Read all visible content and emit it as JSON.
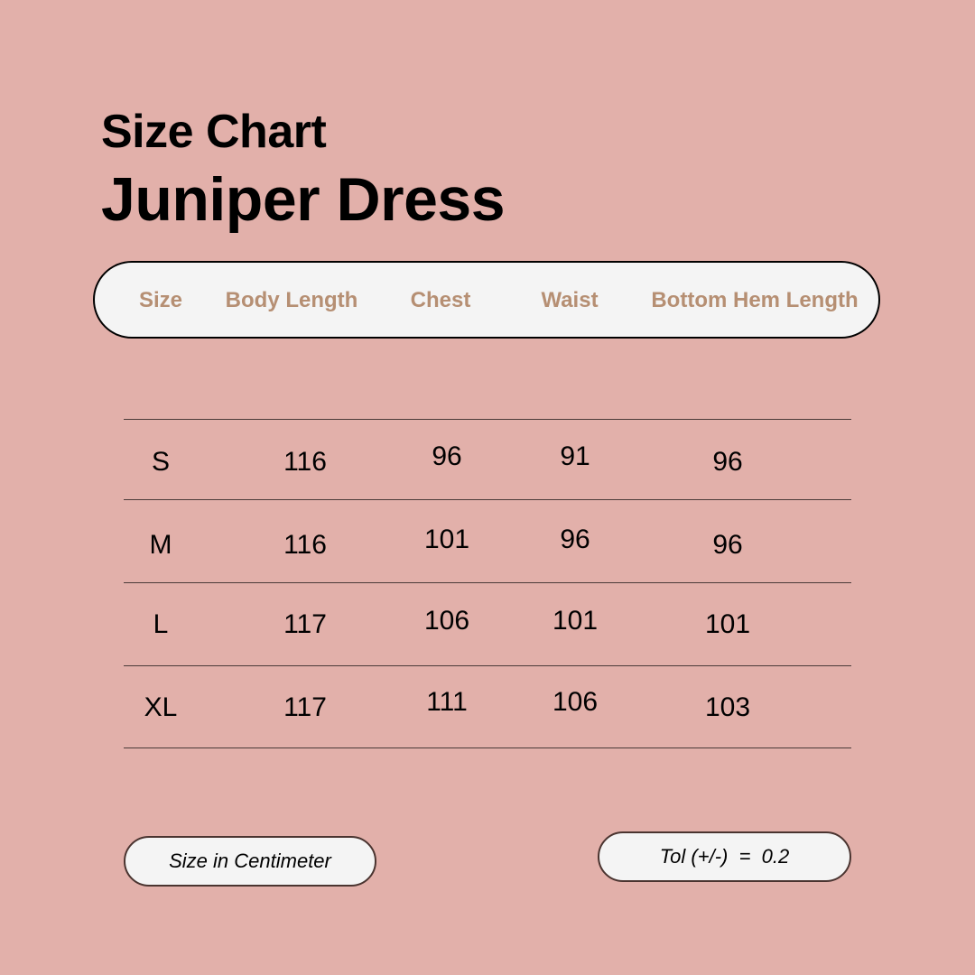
{
  "title": "Size Chart",
  "product": "Juniper Dress",
  "table": {
    "headers": [
      "Size",
      "Body Length",
      "Chest",
      "Waist",
      "Bottom Hem Length"
    ],
    "rows": [
      [
        "S",
        "116",
        "96",
        "91",
        "96"
      ],
      [
        "M",
        "116",
        "101",
        "96",
        "96"
      ],
      [
        "L",
        "117",
        "106",
        "101",
        "101"
      ],
      [
        "XL",
        "117",
        "111",
        "106",
        "103"
      ]
    ]
  },
  "unit_note": "Size in Centimeter",
  "tolerance_note": "Tol (+/-)  =  0.2",
  "colors": {
    "background": "#e2b0aa",
    "header_text": "#b68f73",
    "pill": "#f4f4f4"
  }
}
